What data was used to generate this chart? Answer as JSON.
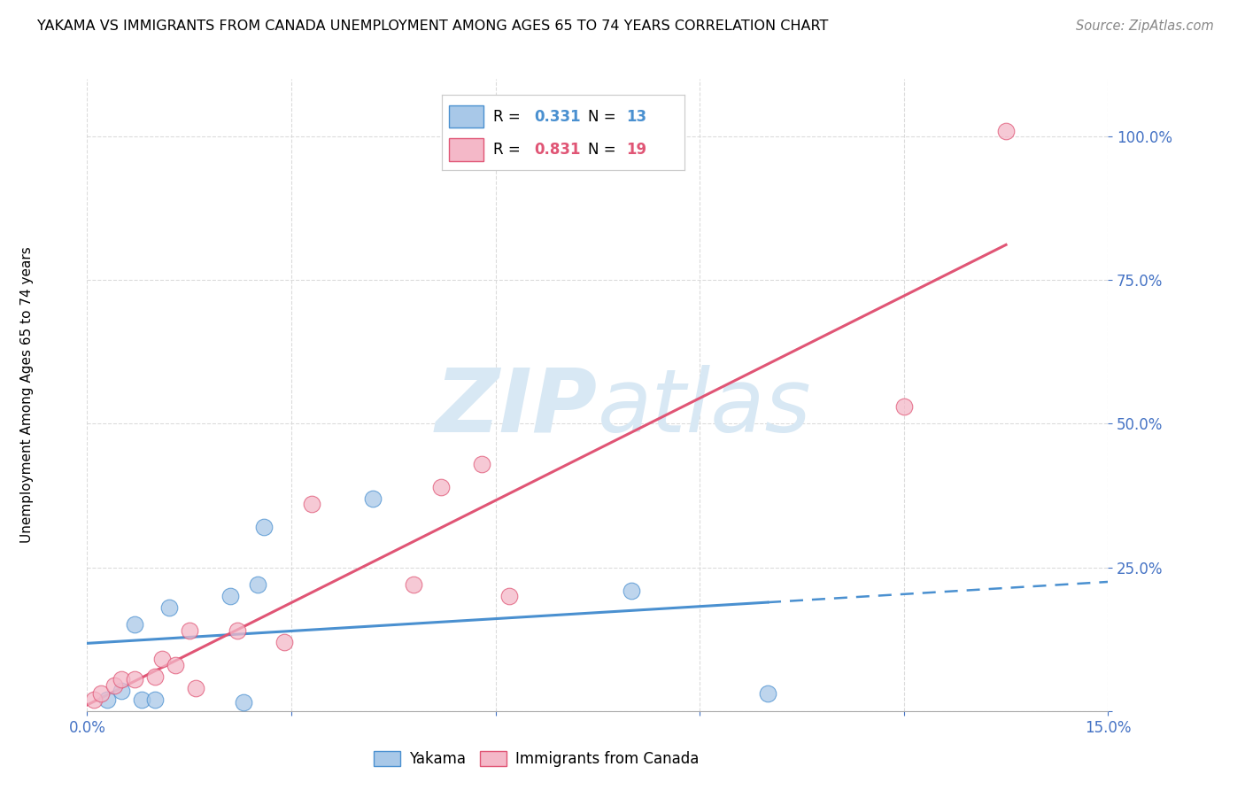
{
  "title": "YAKAMA VS IMMIGRANTS FROM CANADA UNEMPLOYMENT AMONG AGES 65 TO 74 YEARS CORRELATION CHART",
  "source": "Source: ZipAtlas.com",
  "ylabel_label": "Unemployment Among Ages 65 to 74 years",
  "yakama_x": [
    0.3,
    0.5,
    0.7,
    0.8,
    1.0,
    1.2,
    2.1,
    2.3,
    2.5,
    2.6,
    4.2,
    8.0,
    10.0
  ],
  "yakama_y": [
    2.0,
    3.5,
    15.0,
    2.0,
    2.0,
    18.0,
    20.0,
    1.5,
    22.0,
    32.0,
    37.0,
    21.0,
    3.0
  ],
  "canada_x": [
    0.1,
    0.2,
    0.4,
    0.5,
    0.7,
    1.0,
    1.1,
    1.3,
    1.5,
    1.6,
    2.2,
    2.9,
    3.3,
    4.8,
    5.2,
    5.8,
    6.2,
    12.0,
    13.5
  ],
  "canada_y": [
    2.0,
    3.0,
    4.5,
    5.5,
    5.5,
    6.0,
    9.0,
    8.0,
    14.0,
    4.0,
    14.0,
    12.0,
    36.0,
    22.0,
    39.0,
    43.0,
    20.0,
    53.0,
    101.0
  ],
  "yakama_color": "#a8c8e8",
  "canada_color": "#f4b8c8",
  "yakama_line_color": "#4a90d0",
  "canada_line_color": "#e05575",
  "yakama_R": 0.331,
  "yakama_N": 13,
  "canada_R": 0.831,
  "canada_N": 19,
  "background_color": "#ffffff",
  "grid_color": "#d8d8d8",
  "axis_label_color": "#4472c4",
  "watermark_color": "#d8e8f4",
  "xlim": [
    0,
    15
  ],
  "ylim": [
    0,
    110
  ]
}
